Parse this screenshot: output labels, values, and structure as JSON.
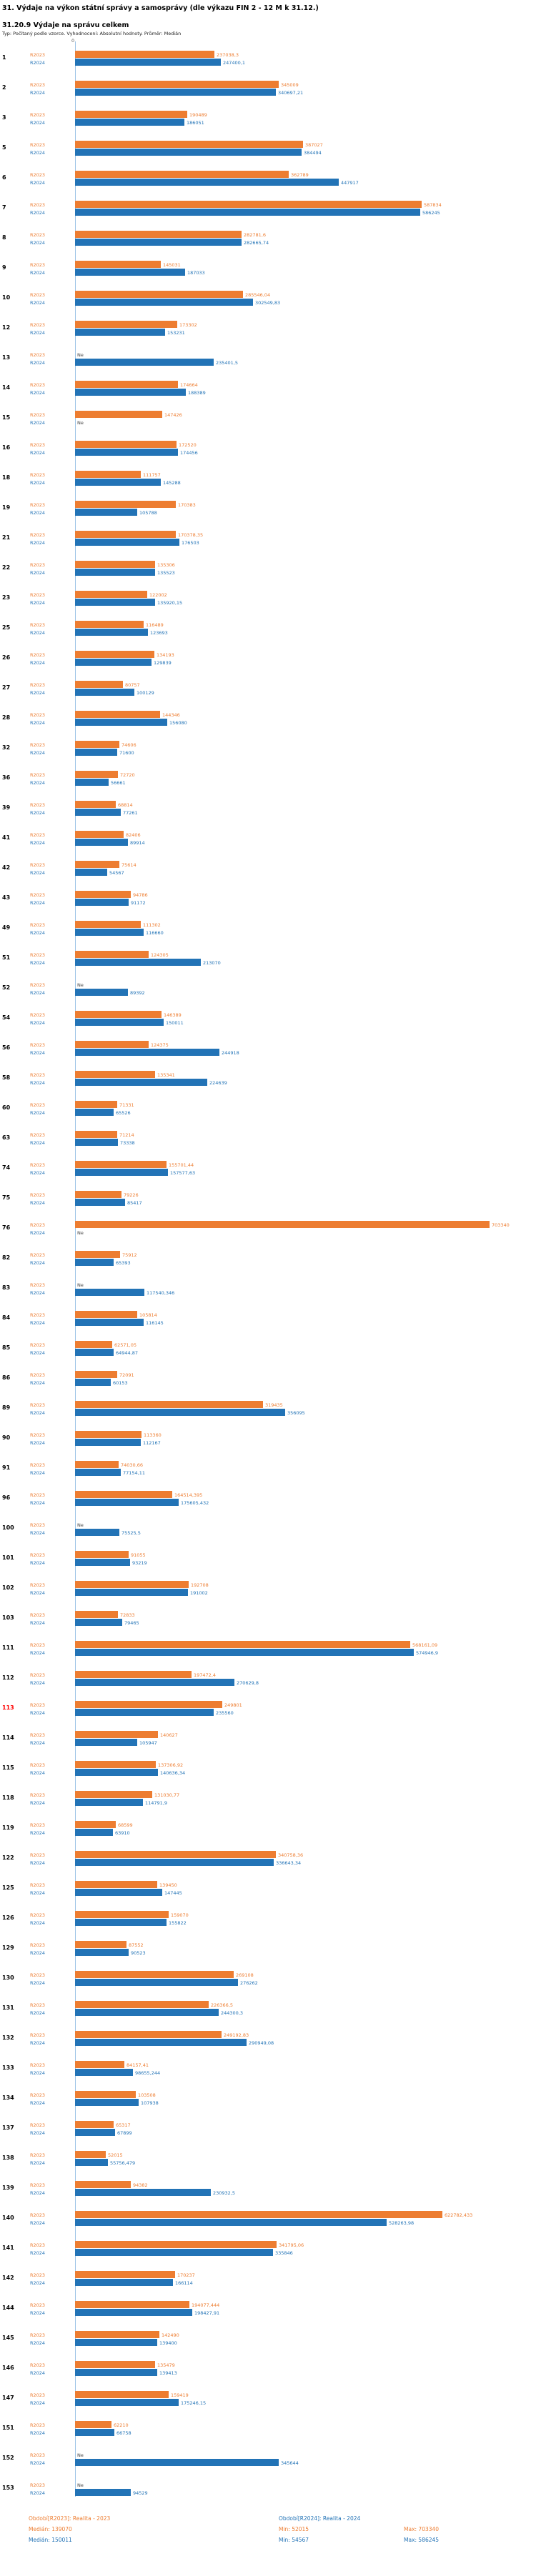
{
  "header": {
    "title": "31. Výdaje na výkon státní správy a samosprávy (dle výkazu FIN 2 - 12 M k 31.12.)",
    "subtitle": "31.20.9 Výdaje na správu celkem",
    "meta": "Typ: Počítaný podle vzorce. Vyhodnocení: Absolutní hodnoty. Průměr: Medián"
  },
  "axis": {
    "zero_label": "0"
  },
  "legend": {
    "r2023": {
      "label": "Období[R2023]: Realita - 2023",
      "median": "Medián: 139070",
      "min": "Min: 52015",
      "max": "Max: 703340"
    },
    "r2024": {
      "label": "Období[R2024]: Realita - 2024",
      "median": "Medián: 150011",
      "min": "Min: 54567",
      "max": "Max: 586245"
    }
  },
  "chart_data": {
    "type": "bar",
    "orientation": "horizontal",
    "title": "31. Výdaje na výkon státní správy a samosprávy (dle výkazu FIN 2 - 12 M k 31.12.)",
    "subtitle": "31.20.9 Výdaje na správu celkem",
    "series_names": [
      "R2023",
      "R2024"
    ],
    "colors": {
      "r2023": "#ED7D31",
      "r2024": "#2273B6"
    },
    "axis_color": "#9DC3E6",
    "highlight_color": "#FF0000",
    "xlim": [
      0,
      703340
    ],
    "legend_position": "bottom",
    "grid": false,
    "rows": [
      {
        "id": "1",
        "r2023": {
          "v": 237038.3,
          "label": "237038,3"
        },
        "r2024": {
          "v": 247400.1,
          "label": "247400,1"
        }
      },
      {
        "id": "2",
        "r2023": {
          "v": 345009,
          "label": "345009"
        },
        "r2024": {
          "v": 340697.21,
          "label": "340697,21"
        }
      },
      {
        "id": "3",
        "r2023": {
          "v": 190489,
          "label": "190489"
        },
        "r2024": {
          "v": 186051,
          "label": "186051"
        }
      },
      {
        "id": "5",
        "r2023": {
          "v": 387027,
          "label": "387027"
        },
        "r2024": {
          "v": 384494,
          "label": "384494"
        }
      },
      {
        "id": "6",
        "r2023": {
          "v": 362789,
          "label": "362789"
        },
        "r2024": {
          "v": 447917,
          "label": "447917"
        }
      },
      {
        "id": "7",
        "r2023": {
          "v": 587834,
          "label": "587834"
        },
        "r2024": {
          "v": 586245,
          "label": "586245"
        }
      },
      {
        "id": "8",
        "r2023": {
          "v": 282781.6,
          "label": "282781,6"
        },
        "r2024": {
          "v": 282665.74,
          "label": "282665,74"
        }
      },
      {
        "id": "9",
        "r2023": {
          "v": 145031,
          "label": "145031"
        },
        "r2024": {
          "v": 187033,
          "label": "187033"
        }
      },
      {
        "id": "10",
        "r2023": {
          "v": 285546.04,
          "label": "285546,04"
        },
        "r2024": {
          "v": 302549.83,
          "label": "302549,83"
        }
      },
      {
        "id": "12",
        "r2023": {
          "v": 173302,
          "label": "173302"
        },
        "r2024": {
          "v": 153231,
          "label": "153231"
        }
      },
      {
        "id": "13",
        "r2023": {
          "v": null,
          "label": "Ne"
        },
        "r2024": {
          "v": 235401.5,
          "label": "235401,5"
        }
      },
      {
        "id": "14",
        "r2023": {
          "v": 174664,
          "label": "174664"
        },
        "r2024": {
          "v": 188389,
          "label": "188389"
        }
      },
      {
        "id": "15",
        "r2023": {
          "v": 147426,
          "label": "147426"
        },
        "r2024": {
          "v": null,
          "label": "Ne"
        }
      },
      {
        "id": "16",
        "r2023": {
          "v": 172520,
          "label": "172520"
        },
        "r2024": {
          "v": 174456,
          "label": "174456"
        }
      },
      {
        "id": "18",
        "r2023": {
          "v": 111757,
          "label": "111757"
        },
        "r2024": {
          "v": 145288,
          "label": "145288"
        }
      },
      {
        "id": "19",
        "r2023": {
          "v": 170383,
          "label": "170383"
        },
        "r2024": {
          "v": 105788,
          "label": "105788"
        }
      },
      {
        "id": "21",
        "r2023": {
          "v": 170378.35,
          "label": "170378,35"
        },
        "r2024": {
          "v": 176503,
          "label": "176503"
        }
      },
      {
        "id": "22",
        "r2023": {
          "v": 135306,
          "label": "135306"
        },
        "r2024": {
          "v": 135523,
          "label": "135523"
        }
      },
      {
        "id": "23",
        "r2023": {
          "v": 122002,
          "label": "122002"
        },
        "r2024": {
          "v": 135920.15,
          "label": "135920,15"
        }
      },
      {
        "id": "25",
        "r2023": {
          "v": 116489,
          "label": "116489"
        },
        "r2024": {
          "v": 123693,
          "label": "123693"
        }
      },
      {
        "id": "26",
        "r2023": {
          "v": 134193,
          "label": "134193"
        },
        "r2024": {
          "v": 129839,
          "label": "129839"
        }
      },
      {
        "id": "27",
        "r2023": {
          "v": 80757,
          "label": "80757"
        },
        "r2024": {
          "v": 100129,
          "label": "100129"
        }
      },
      {
        "id": "28",
        "r2023": {
          "v": 144346,
          "label": "144346"
        },
        "r2024": {
          "v": 156080,
          "label": "156080"
        }
      },
      {
        "id": "32",
        "r2023": {
          "v": 74606,
          "label": "74606"
        },
        "r2024": {
          "v": 71600,
          "label": "71600"
        }
      },
      {
        "id": "36",
        "r2023": {
          "v": 72720,
          "label": "72720"
        },
        "r2024": {
          "v": 56661,
          "label": "56661"
        }
      },
      {
        "id": "39",
        "r2023": {
          "v": 68814,
          "label": "68814"
        },
        "r2024": {
          "v": 77261,
          "label": "77261"
        }
      },
      {
        "id": "41",
        "r2023": {
          "v": 82406,
          "label": "82406"
        },
        "r2024": {
          "v": 89914,
          "label": "89914"
        }
      },
      {
        "id": "42",
        "r2023": {
          "v": 75614,
          "label": "75614"
        },
        "r2024": {
          "v": 54567,
          "label": "54567"
        }
      },
      {
        "id": "43",
        "r2023": {
          "v": 94786,
          "label": "94786"
        },
        "r2024": {
          "v": 91172,
          "label": "91172"
        }
      },
      {
        "id": "49",
        "r2023": {
          "v": 111302,
          "label": "111302"
        },
        "r2024": {
          "v": 116660,
          "label": "116660"
        }
      },
      {
        "id": "51",
        "r2023": {
          "v": 124305,
          "label": "124305"
        },
        "r2024": {
          "v": 213070,
          "label": "213070"
        }
      },
      {
        "id": "52",
        "r2023": {
          "v": null,
          "label": "Ne"
        },
        "r2024": {
          "v": 89392,
          "label": "89392"
        }
      },
      {
        "id": "54",
        "r2023": {
          "v": 146389,
          "label": "146389"
        },
        "r2024": {
          "v": 150011,
          "label": "150011"
        }
      },
      {
        "id": "56",
        "r2023": {
          "v": 124375,
          "label": "124375"
        },
        "r2024": {
          "v": 244918,
          "label": "244918"
        }
      },
      {
        "id": "58",
        "r2023": {
          "v": 135341,
          "label": "135341"
        },
        "r2024": {
          "v": 224639,
          "label": "224639"
        }
      },
      {
        "id": "60",
        "r2023": {
          "v": 71331,
          "label": "71331"
        },
        "r2024": {
          "v": 65526,
          "label": "65526"
        }
      },
      {
        "id": "63",
        "r2023": {
          "v": 71214,
          "label": "71214"
        },
        "r2024": {
          "v": 73338,
          "label": "73338"
        }
      },
      {
        "id": "74",
        "r2023": {
          "v": 155701.44,
          "label": "155701,44"
        },
        "r2024": {
          "v": 157577.63,
          "label": "157577,63"
        }
      },
      {
        "id": "75",
        "r2023": {
          "v": 79226,
          "label": "79226"
        },
        "r2024": {
          "v": 85417,
          "label": "85417"
        }
      },
      {
        "id": "76",
        "r2023": {
          "v": 703340,
          "label": "703340"
        },
        "r2024": {
          "v": null,
          "label": "Ne"
        }
      },
      {
        "id": "82",
        "r2023": {
          "v": 75912,
          "label": "75912"
        },
        "r2024": {
          "v": 65393,
          "label": "65393"
        }
      },
      {
        "id": "83",
        "r2023": {
          "v": null,
          "label": "Ne"
        },
        "r2024": {
          "v": 117540.346,
          "label": "117540,346"
        }
      },
      {
        "id": "84",
        "r2023": {
          "v": 105814,
          "label": "105814"
        },
        "r2024": {
          "v": 116145,
          "label": "116145"
        }
      },
      {
        "id": "85",
        "r2023": {
          "v": 62571.05,
          "label": "62571,05"
        },
        "r2024": {
          "v": 64944.87,
          "label": "64944,87"
        }
      },
      {
        "id": "86",
        "r2023": {
          "v": 72091,
          "label": "72091"
        },
        "r2024": {
          "v": 60153,
          "label": "60153"
        }
      },
      {
        "id": "89",
        "r2023": {
          "v": 319435,
          "label": "319435"
        },
        "r2024": {
          "v": 356095,
          "label": "356095"
        }
      },
      {
        "id": "90",
        "r2023": {
          "v": 113360,
          "label": "113360"
        },
        "r2024": {
          "v": 112167,
          "label": "112167"
        }
      },
      {
        "id": "91",
        "r2023": {
          "v": 74030.66,
          "label": "74030,66"
        },
        "r2024": {
          "v": 77154.11,
          "label": "77154,11"
        }
      },
      {
        "id": "96",
        "r2023": {
          "v": 164514.395,
          "label": "164514,395"
        },
        "r2024": {
          "v": 175605.432,
          "label": "175605,432"
        }
      },
      {
        "id": "100",
        "r2023": {
          "v": null,
          "label": "Ne"
        },
        "r2024": {
          "v": 75525.5,
          "label": "75525,5"
        }
      },
      {
        "id": "101",
        "r2023": {
          "v": 91055,
          "label": "91055"
        },
        "r2024": {
          "v": 93219,
          "label": "93219"
        }
      },
      {
        "id": "102",
        "r2023": {
          "v": 192708,
          "label": "192708"
        },
        "r2024": {
          "v": 191002,
          "label": "191002"
        }
      },
      {
        "id": "103",
        "r2023": {
          "v": 72833,
          "label": "72833"
        },
        "r2024": {
          "v": 79465,
          "label": "79465"
        }
      },
      {
        "id": "111",
        "r2023": {
          "v": 568161.09,
          "label": "568161,09"
        },
        "r2024": {
          "v": 574946.9,
          "label": "574946,9"
        }
      },
      {
        "id": "112",
        "r2023": {
          "v": 197472.4,
          "label": "197472,4"
        },
        "r2024": {
          "v": 270629.8,
          "label": "270629,8"
        }
      },
      {
        "id": "113",
        "highlight": true,
        "r2023": {
          "v": 249801,
          "label": "249801"
        },
        "r2024": {
          "v": 235560,
          "label": "235560"
        }
      },
      {
        "id": "114",
        "r2023": {
          "v": 140627,
          "label": "140627"
        },
        "r2024": {
          "v": 105947,
          "label": "105947"
        }
      },
      {
        "id": "115",
        "r2023": {
          "v": 137306.92,
          "label": "137306,92"
        },
        "r2024": {
          "v": 140636.34,
          "label": "140636,34"
        }
      },
      {
        "id": "118",
        "r2023": {
          "v": 131030.77,
          "label": "131030,77"
        },
        "r2024": {
          "v": 114791.9,
          "label": "114791,9"
        }
      },
      {
        "id": "119",
        "r2023": {
          "v": 68599,
          "label": "68599"
        },
        "r2024": {
          "v": 63910,
          "label": "63910"
        }
      },
      {
        "id": "122",
        "r2023": {
          "v": 340758.36,
          "label": "340758,36"
        },
        "r2024": {
          "v": 336643.34,
          "label": "336643,34"
        }
      },
      {
        "id": "125",
        "r2023": {
          "v": 139450,
          "label": "139450"
        },
        "r2024": {
          "v": 147445,
          "label": "147445"
        }
      },
      {
        "id": "126",
        "r2023": {
          "v": 159070,
          "label": "159070"
        },
        "r2024": {
          "v": 155822,
          "label": "155822"
        }
      },
      {
        "id": "129",
        "r2023": {
          "v": 87552,
          "label": "87552"
        },
        "r2024": {
          "v": 90523,
          "label": "90523"
        }
      },
      {
        "id": "130",
        "r2023": {
          "v": 269108,
          "label": "269108"
        },
        "r2024": {
          "v": 276262,
          "label": "276262"
        }
      },
      {
        "id": "131",
        "r2023": {
          "v": 226366.5,
          "label": "226366,5"
        },
        "r2024": {
          "v": 244300.3,
          "label": "244300,3"
        }
      },
      {
        "id": "132",
        "r2023": {
          "v": 249192.83,
          "label": "249192,83"
        },
        "r2024": {
          "v": 290949.08,
          "label": "290949,08"
        }
      },
      {
        "id": "133",
        "r2023": {
          "v": 84157.41,
          "label": "84157,41"
        },
        "r2024": {
          "v": 98655.244,
          "label": "98655,244"
        }
      },
      {
        "id": "134",
        "r2023": {
          "v": 103508,
          "label": "103508"
        },
        "r2024": {
          "v": 107938,
          "label": "107938"
        }
      },
      {
        "id": "137",
        "r2023": {
          "v": 65317,
          "label": "65317"
        },
        "r2024": {
          "v": 67899,
          "label": "67899"
        }
      },
      {
        "id": "138",
        "r2023": {
          "v": 52015,
          "label": "52015"
        },
        "r2024": {
          "v": 55756.479,
          "label": "55756,479"
        }
      },
      {
        "id": "139",
        "r2023": {
          "v": 94382,
          "label": "94382"
        },
        "r2024": {
          "v": 230932.5,
          "label": "230932,5"
        }
      },
      {
        "id": "140",
        "r2023": {
          "v": 622782.433,
          "label": "622782,433"
        },
        "r2024": {
          "v": 528263.98,
          "label": "528263,98"
        }
      },
      {
        "id": "141",
        "r2023": {
          "v": 341795.06,
          "label": "341795,06"
        },
        "r2024": {
          "v": 335846,
          "label": "335846"
        }
      },
      {
        "id": "142",
        "r2023": {
          "v": 170237,
          "label": "170237"
        },
        "r2024": {
          "v": 166114,
          "label": "166114"
        }
      },
      {
        "id": "144",
        "r2023": {
          "v": 194077.444,
          "label": "194077,444"
        },
        "r2024": {
          "v": 198427.91,
          "label": "198427,91"
        }
      },
      {
        "id": "145",
        "r2023": {
          "v": 142490,
          "label": "142490"
        },
        "r2024": {
          "v": 139400,
          "label": "139400"
        }
      },
      {
        "id": "146",
        "r2023": {
          "v": 135479,
          "label": "135479"
        },
        "r2024": {
          "v": 139413,
          "label": "139413"
        }
      },
      {
        "id": "147",
        "r2023": {
          "v": 159419,
          "label": "159419"
        },
        "r2024": {
          "v": 175246.15,
          "label": "175246,15"
        }
      },
      {
        "id": "151",
        "r2023": {
          "v": 62210,
          "label": "62210"
        },
        "r2024": {
          "v": 66758,
          "label": "66758"
        }
      },
      {
        "id": "152",
        "r2023": {
          "v": null,
          "label": "Ne"
        },
        "r2024": {
          "v": 345644,
          "label": "345644"
        }
      },
      {
        "id": "153",
        "r2023": {
          "v": null,
          "label": "Ne"
        },
        "r2024": {
          "v": 94529,
          "label": "94529"
        }
      }
    ]
  }
}
